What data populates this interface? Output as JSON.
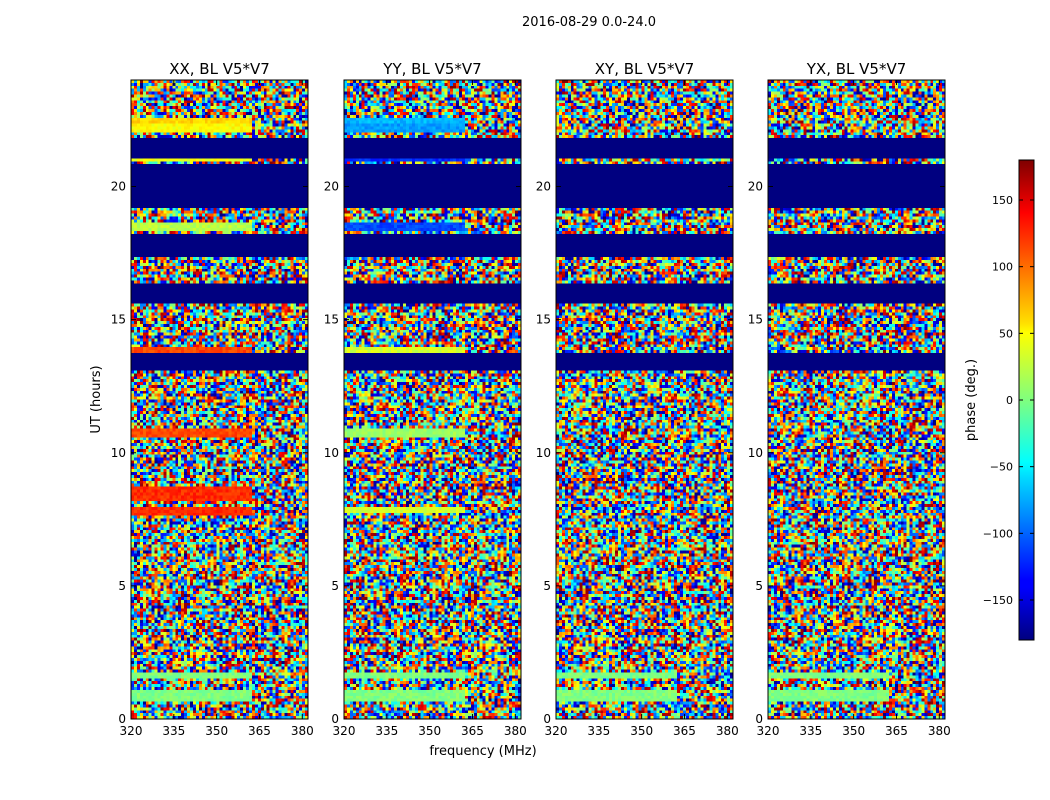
{
  "figure": {
    "suptitle": "2016-08-29 0.0-24.0"
  },
  "colorbar": {
    "label": "phase (deg.)",
    "ticks": [
      150,
      100,
      50,
      0,
      -50,
      -100,
      -150
    ],
    "range": [
      -180,
      180
    ],
    "colormap": "jet"
  },
  "chart_data": [
    {
      "type": "heatmap",
      "title": "XX, BL V5*V7",
      "xlabel": "",
      "ylabel": "UT (hours)",
      "xlim": [
        320,
        382
      ],
      "ylim": [
        0,
        24
      ],
      "xticks": [
        320,
        335,
        350,
        365,
        380
      ],
      "yticks": [
        0,
        5,
        10,
        15,
        20
      ],
      "z": "phase (deg.)",
      "z_range": [
        -180,
        180
      ],
      "bands": [
        {
          "y": [
            0.7,
            1.1
          ],
          "phase": 0
        },
        {
          "y": [
            1.5,
            1.7
          ],
          "phase": 0
        },
        {
          "y": [
            7.6,
            8.0
          ],
          "phase": 120
        },
        {
          "y": [
            8.2,
            8.7
          ],
          "phase": 120
        },
        {
          "y": [
            10.6,
            10.9
          ],
          "phase": 110
        },
        {
          "y": [
            13.8,
            14.0
          ],
          "phase": 110
        },
        {
          "y": [
            18.3,
            18.7
          ],
          "phase": 20
        },
        {
          "y": [
            20.9,
            21.0
          ],
          "phase": 40
        },
        {
          "y": [
            22.0,
            22.4
          ],
          "phase": 45
        },
        {
          "y": [
            22.4,
            22.6
          ],
          "phase": 60
        }
      ],
      "blank_ranges": [
        [
          13.1,
          13.7
        ],
        [
          15.6,
          16.4
        ],
        [
          17.3,
          18.2
        ],
        [
          19.2,
          20.8
        ],
        [
          21.1,
          21.8
        ]
      ]
    },
    {
      "type": "heatmap",
      "title": "YY, BL V5*V7",
      "xlabel": "frequency (MHz)",
      "ylabel": "",
      "xlim": [
        320,
        382
      ],
      "ylim": [
        0,
        24
      ],
      "xticks": [
        320,
        335,
        350,
        365,
        380
      ],
      "yticks": [
        0,
        5,
        10,
        15,
        20
      ],
      "z": "phase (deg.)",
      "z_range": [
        -180,
        180
      ],
      "bands": [
        {
          "y": [
            0.7,
            1.1
          ],
          "phase": 0
        },
        {
          "y": [
            1.5,
            1.7
          ],
          "phase": 0
        },
        {
          "y": [
            7.7,
            8.0
          ],
          "phase": 30
        },
        {
          "y": [
            10.6,
            10.9
          ],
          "phase": 10
        },
        {
          "y": [
            13.8,
            14.0
          ],
          "phase": 30
        },
        {
          "y": [
            18.3,
            18.7
          ],
          "phase": -110
        },
        {
          "y": [
            20.9,
            21.0
          ],
          "phase": -120
        },
        {
          "y": [
            22.0,
            22.4
          ],
          "phase": -80
        },
        {
          "y": [
            22.4,
            22.6
          ],
          "phase": -70
        }
      ],
      "blank_ranges": [
        [
          13.1,
          13.7
        ],
        [
          15.6,
          16.4
        ],
        [
          17.3,
          18.2
        ],
        [
          19.2,
          20.8
        ],
        [
          21.1,
          21.8
        ]
      ]
    },
    {
      "type": "heatmap",
      "title": "XY, BL V5*V7",
      "xlabel": "",
      "ylabel": "",
      "xlim": [
        320,
        382
      ],
      "ylim": [
        0,
        24
      ],
      "xticks": [
        320,
        335,
        350,
        365,
        380
      ],
      "yticks": [
        0,
        5,
        10,
        15,
        20
      ],
      "z": "phase (deg.)",
      "z_range": [
        -180,
        180
      ],
      "bands": [
        {
          "y": [
            0.7,
            1.1
          ],
          "phase": 0
        },
        {
          "y": [
            1.5,
            1.7
          ],
          "phase": 0
        }
      ],
      "blank_ranges": [
        [
          13.1,
          13.7
        ],
        [
          15.6,
          16.4
        ],
        [
          17.3,
          18.2
        ],
        [
          19.2,
          20.8
        ],
        [
          21.1,
          21.8
        ]
      ]
    },
    {
      "type": "heatmap",
      "title": "YX, BL V5*V7",
      "xlabel": "",
      "ylabel": "",
      "xlim": [
        320,
        382
      ],
      "ylim": [
        0,
        24
      ],
      "xticks": [
        320,
        335,
        350,
        365,
        380
      ],
      "yticks": [
        0,
        5,
        10,
        15,
        20
      ],
      "z": "phase (deg.)",
      "z_range": [
        -180,
        180
      ],
      "bands": [
        {
          "y": [
            0.7,
            1.1
          ],
          "phase": 0
        },
        {
          "y": [
            1.5,
            1.7
          ],
          "phase": 0
        }
      ],
      "blank_ranges": [
        [
          13.1,
          13.7
        ],
        [
          15.6,
          16.4
        ],
        [
          17.3,
          18.2
        ],
        [
          19.2,
          20.8
        ],
        [
          21.1,
          21.8
        ]
      ]
    }
  ]
}
